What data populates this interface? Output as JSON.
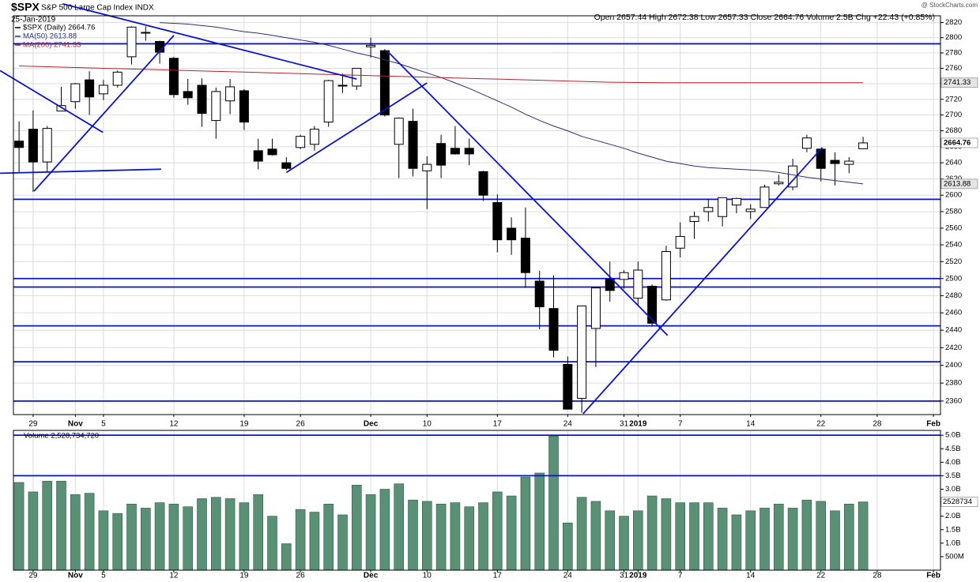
{
  "chart_data": [
    {
      "type": "candlestick",
      "title": "$SPX",
      "subtitle": "S&P 500 Large Cap Index INDX",
      "date": "25-Jan-2019",
      "quote": "Open 2657.44  High 2672.38  Low 2657.33  Close 2664.76  Volume 2.5B  Chg +22.43 (+0.85%)",
      "watermark": "@ StockCharts.com",
      "legend": [
        "$SPX (Daily) 2664.76",
        "MA(50) 2613.88",
        "MA(200) 2741.33"
      ],
      "log_scale": true,
      "grid": true,
      "ylim": [
        2345,
        2829
      ],
      "xlim": [
        -0.4,
        65.5
      ],
      "yticks": [
        2360,
        2380,
        2400,
        2420,
        2440,
        2460,
        2480,
        2500,
        2520,
        2540,
        2560,
        2580,
        2600,
        2620,
        2640,
        2660,
        2680,
        2700,
        2720,
        2740,
        2760,
        2780,
        2800,
        2820
      ],
      "xticks": [
        {
          "value": 1,
          "label": "29"
        },
        {
          "value": 4,
          "label": "Nov"
        },
        {
          "value": 6,
          "label": "5"
        },
        {
          "value": 11,
          "label": "12"
        },
        {
          "value": 16,
          "label": "19"
        },
        {
          "value": 20,
          "label": "26"
        },
        {
          "value": 25,
          "label": "Dec"
        },
        {
          "value": 29,
          "label": "10"
        },
        {
          "value": 34,
          "label": "17"
        },
        {
          "value": 39,
          "label": "24"
        },
        {
          "value": 43,
          "label": "31"
        },
        {
          "value": 44,
          "label": "2019"
        },
        {
          "value": 47,
          "label": "7"
        },
        {
          "value": 52,
          "label": "14"
        },
        {
          "value": 57,
          "label": "22"
        },
        {
          "value": 61,
          "label": "28"
        },
        {
          "value": 65,
          "label": "Feb"
        }
      ],
      "open": [
        2667,
        2682,
        2641,
        2705,
        2717,
        2745,
        2727,
        2738,
        2775,
        2806,
        2795,
        2773,
        2730,
        2738,
        2693,
        2718,
        2731,
        2655,
        2657,
        2640,
        2659,
        2663,
        2691,
        2737,
        2737,
        2788,
        2783,
        2663,
        2692,
        2630,
        2664,
        2658,
        2658,
        2629,
        2591,
        2560,
        2548,
        2497,
        2465,
        2401,
        2363,
        2442,
        2499,
        2499,
        2477,
        2491,
        2475,
        2536,
        2568,
        2580,
        2574,
        2588,
        2580,
        2585,
        2614,
        2610,
        2658,
        2657,
        2643,
        2638,
        2657.44
      ],
      "high": [
        2692,
        2706,
        2686,
        2736,
        2741,
        2756,
        2745,
        2757,
        2815,
        2815,
        2796,
        2775,
        2746,
        2747,
        2735,
        2746,
        2733,
        2670,
        2670,
        2647,
        2675,
        2686,
        2745,
        2753,
        2760,
        2800,
        2785,
        2697,
        2708,
        2648,
        2675,
        2686,
        2670,
        2630,
        2601,
        2573,
        2585,
        2509,
        2504,
        2410,
        2468,
        2489,
        2520,
        2510,
        2520,
        2493,
        2539,
        2567,
        2580,
        2595,
        2597,
        2597,
        2589,
        2613,
        2625,
        2645,
        2675,
        2657,
        2653,
        2647,
        2672.38
      ],
      "low": [
        2628,
        2604,
        2628,
        2705,
        2708,
        2700,
        2719,
        2735,
        2765,
        2796,
        2766,
        2722,
        2713,
        2685,
        2670,
        2701,
        2681,
        2632,
        2649,
        2631,
        2657,
        2655,
        2685,
        2728,
        2732,
        2774,
        2698,
        2621,
        2623,
        2583,
        2621,
        2650,
        2637,
        2593,
        2531,
        2528,
        2489,
        2441,
        2409,
        2351,
        2347,
        2398,
        2473,
        2488,
        2468,
        2444,
        2474,
        2525,
        2547,
        2568,
        2562,
        2578,
        2571,
        2585,
        2612,
        2606,
        2653,
        2617,
        2612,
        2627,
        2657.33
      ],
      "close": [
        2659,
        2641,
        2683,
        2712,
        2740,
        2723,
        2738,
        2755,
        2814,
        2807,
        2781,
        2726,
        2722,
        2702,
        2730,
        2736,
        2691,
        2642,
        2650,
        2633,
        2673,
        2682,
        2744,
        2738,
        2760,
        2790,
        2700,
        2696,
        2633,
        2638,
        2637,
        2651,
        2651,
        2600,
        2546,
        2546,
        2507,
        2467,
        2417,
        2351,
        2468,
        2489,
        2486,
        2507,
        2510,
        2448,
        2532,
        2550,
        2574,
        2585,
        2597,
        2596,
        2583,
        2610,
        2616,
        2636,
        2671,
        2633,
        2639,
        2642,
        2664.76
      ],
      "overlays": [
        {
          "name": "MA(50)",
          "color": "#28307a",
          "values": [
            null,
            null,
            null,
            null,
            null,
            null,
            null,
            null,
            null,
            null,
            2820,
            2819,
            2818,
            2816,
            2814,
            2811,
            2808,
            2806,
            2803,
            2800,
            2797,
            2794,
            2790,
            2785,
            2780,
            2776,
            2771,
            2766,
            2760,
            2754,
            2748,
            2741,
            2734,
            2726,
            2718,
            2710,
            2701,
            2693,
            2686,
            2680,
            2673,
            2668,
            2663,
            2658,
            2652,
            2647,
            2642,
            2639,
            2636,
            2634,
            2633,
            2632,
            2631,
            2630,
            2628,
            2625,
            2622,
            2620,
            2618,
            2616,
            2613.88
          ]
        },
        {
          "name": "MA(200)",
          "color": "#b3232e",
          "values": [
            2763,
            2762.5,
            2762,
            2761.5,
            2761,
            2760.5,
            2760,
            2759.5,
            2759,
            2758.5,
            2758,
            2757.5,
            2757,
            2756.5,
            2756,
            2755.5,
            2755,
            2754.5,
            2754,
            2753.5,
            2753,
            2752.5,
            2752,
            2751.5,
            2751,
            2750.5,
            2750,
            2749.5,
            2749,
            2748.5,
            2748,
            2747.5,
            2747,
            2746.5,
            2746,
            2745.5,
            2745,
            2744.5,
            2744,
            2743.5,
            2743,
            2742.5,
            2742,
            2741.8,
            2741.6,
            2741.5,
            2741.4,
            2741.4,
            2741.3,
            2741.3,
            2741.3,
            2741.3,
            2741.3,
            2741.3,
            2741.3,
            2741.3,
            2741.3,
            2741.3,
            2741.3,
            2741.3,
            2741.33
          ]
        }
      ],
      "hlines": [
        2792,
        2595,
        2500,
        2490,
        2445,
        2404,
        2360
      ],
      "trendlines": [
        {
          "x": [
            -1.35,
            5.96
          ],
          "y": [
            2757,
            2678
          ]
        },
        {
          "x": [
            1.07,
            11.0
          ],
          "y": [
            2605,
            2803
          ]
        },
        {
          "x": [
            -1.35,
            10.1
          ],
          "y": [
            2627,
            2632
          ]
        },
        {
          "x": [
            3.1,
            24.0
          ],
          "y": [
            2845,
            2746
          ]
        },
        {
          "x": [
            19.0,
            29.0
          ],
          "y": [
            2628,
            2741
          ]
        },
        {
          "x": [
            26.2,
            46.1
          ],
          "y": [
            2782,
            2434
          ]
        },
        {
          "x": [
            40.1,
            57.1
          ],
          "y": [
            2346,
            2659
          ]
        }
      ],
      "line_color": "#0a14c8"
    },
    {
      "type": "bar",
      "title": "Volume 2,528,734,720",
      "last_label": "2528734",
      "color": "#5a9176",
      "grid": true,
      "ylim": [
        0,
        5.18
      ],
      "xlim": [
        -0.4,
        65.5
      ],
      "yticks": [
        {
          "value": 0.5,
          "label": "500M"
        },
        {
          "value": 1,
          "label": "1.0B"
        },
        {
          "value": 1.5,
          "label": "1.5B"
        },
        {
          "value": 2,
          "label": "2.0B"
        },
        {
          "value": 2.5,
          "label": "2.5B"
        },
        {
          "value": 3,
          "label": "3.0B"
        },
        {
          "value": 3.5,
          "label": "3.5B"
        },
        {
          "value": 4,
          "label": "4.0B"
        },
        {
          "value": 4.5,
          "label": "4.5B"
        },
        {
          "value": 5,
          "label": "5.0B"
        }
      ],
      "xticks": [
        {
          "value": 1,
          "label": "29"
        },
        {
          "value": 4,
          "label": "Nov"
        },
        {
          "value": 6,
          "label": "5"
        },
        {
          "value": 11,
          "label": "12"
        },
        {
          "value": 16,
          "label": "19"
        },
        {
          "value": 20,
          "label": "26"
        },
        {
          "value": 25,
          "label": "Dec"
        },
        {
          "value": 29,
          "label": "10"
        },
        {
          "value": 34,
          "label": "17"
        },
        {
          "value": 39,
          "label": "24"
        },
        {
          "value": 43,
          "label": "31"
        },
        {
          "value": 44,
          "label": "2019"
        },
        {
          "value": 47,
          "label": "7"
        },
        {
          "value": 52,
          "label": "14"
        },
        {
          "value": 57,
          "label": "22"
        },
        {
          "value": 61,
          "label": "28"
        },
        {
          "value": 65,
          "label": "Feb"
        }
      ],
      "values": [
        3.25,
        2.9,
        3.3,
        3.3,
        2.8,
        2.85,
        2.2,
        2.1,
        2.45,
        2.3,
        2.5,
        2.45,
        2.35,
        2.65,
        2.7,
        2.65,
        2.5,
        2.8,
        2.0,
        0.98,
        2.25,
        2.15,
        2.45,
        2.05,
        3.15,
        2.8,
        3.0,
        3.2,
        2.6,
        2.55,
        2.45,
        2.5,
        2.35,
        2.5,
        2.9,
        2.75,
        3.45,
        3.6,
        4.97,
        1.75,
        2.7,
        2.55,
        2.2,
        2.0,
        2.2,
        2.75,
        2.65,
        2.5,
        2.5,
        2.5,
        2.3,
        2.05,
        2.2,
        2.3,
        2.45,
        2.3,
        2.6,
        2.55,
        2.2,
        2.45,
        2.53
      ],
      "hlines": [
        5,
        3.5
      ],
      "line_color": "#0a14c8"
    }
  ]
}
